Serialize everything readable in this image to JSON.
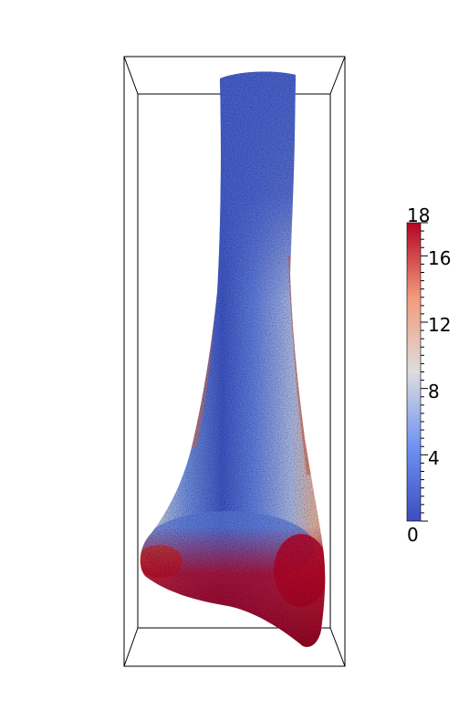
{
  "viewport": {
    "background_color": "#ffffff",
    "object": "bone-surface-colormap"
  },
  "colorbar": {
    "colormap": "Cool to Warm",
    "range": [
      0,
      18
    ],
    "low_color": "#3b4cc0",
    "mid_color": "#dddddd",
    "high_color": "#b40426",
    "major_ticks": [
      "0",
      "4",
      "8",
      "12",
      "16",
      "18"
    ]
  }
}
